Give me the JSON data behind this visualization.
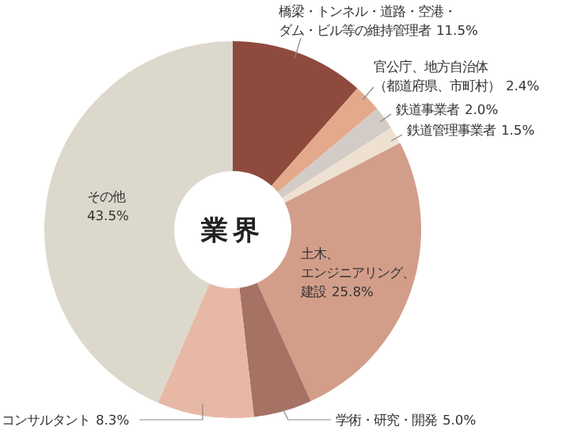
{
  "chart_data": {
    "type": "donut",
    "title": "業界",
    "categories": [
      "橋梁・トンネル・道路・空港・ダム・ビル等の維持管理者",
      "官公庁、地方自治体（都道府県、市町村）",
      "鉄道事業者",
      "鉄道管理事業者",
      "土木、エンジニアリング、建設",
      "学術・研究・開発",
      "コンサルタント",
      "その他"
    ],
    "values": [
      11.5,
      2.4,
      2.0,
      1.5,
      25.8,
      5.0,
      8.3,
      43.5
    ],
    "value_labels": [
      "11.5%",
      "2.4%",
      "2.0%",
      "1.5%",
      "25.8%",
      "5.0%",
      "8.3%",
      "43.5%"
    ],
    "colors": [
      "#8f4a3e",
      "#e4a98a",
      "#d3cbc6",
      "#efe1d2",
      "#d29e8a",
      "#a57263",
      "#e8b8a6",
      "#dcd8cc"
    ]
  }
}
